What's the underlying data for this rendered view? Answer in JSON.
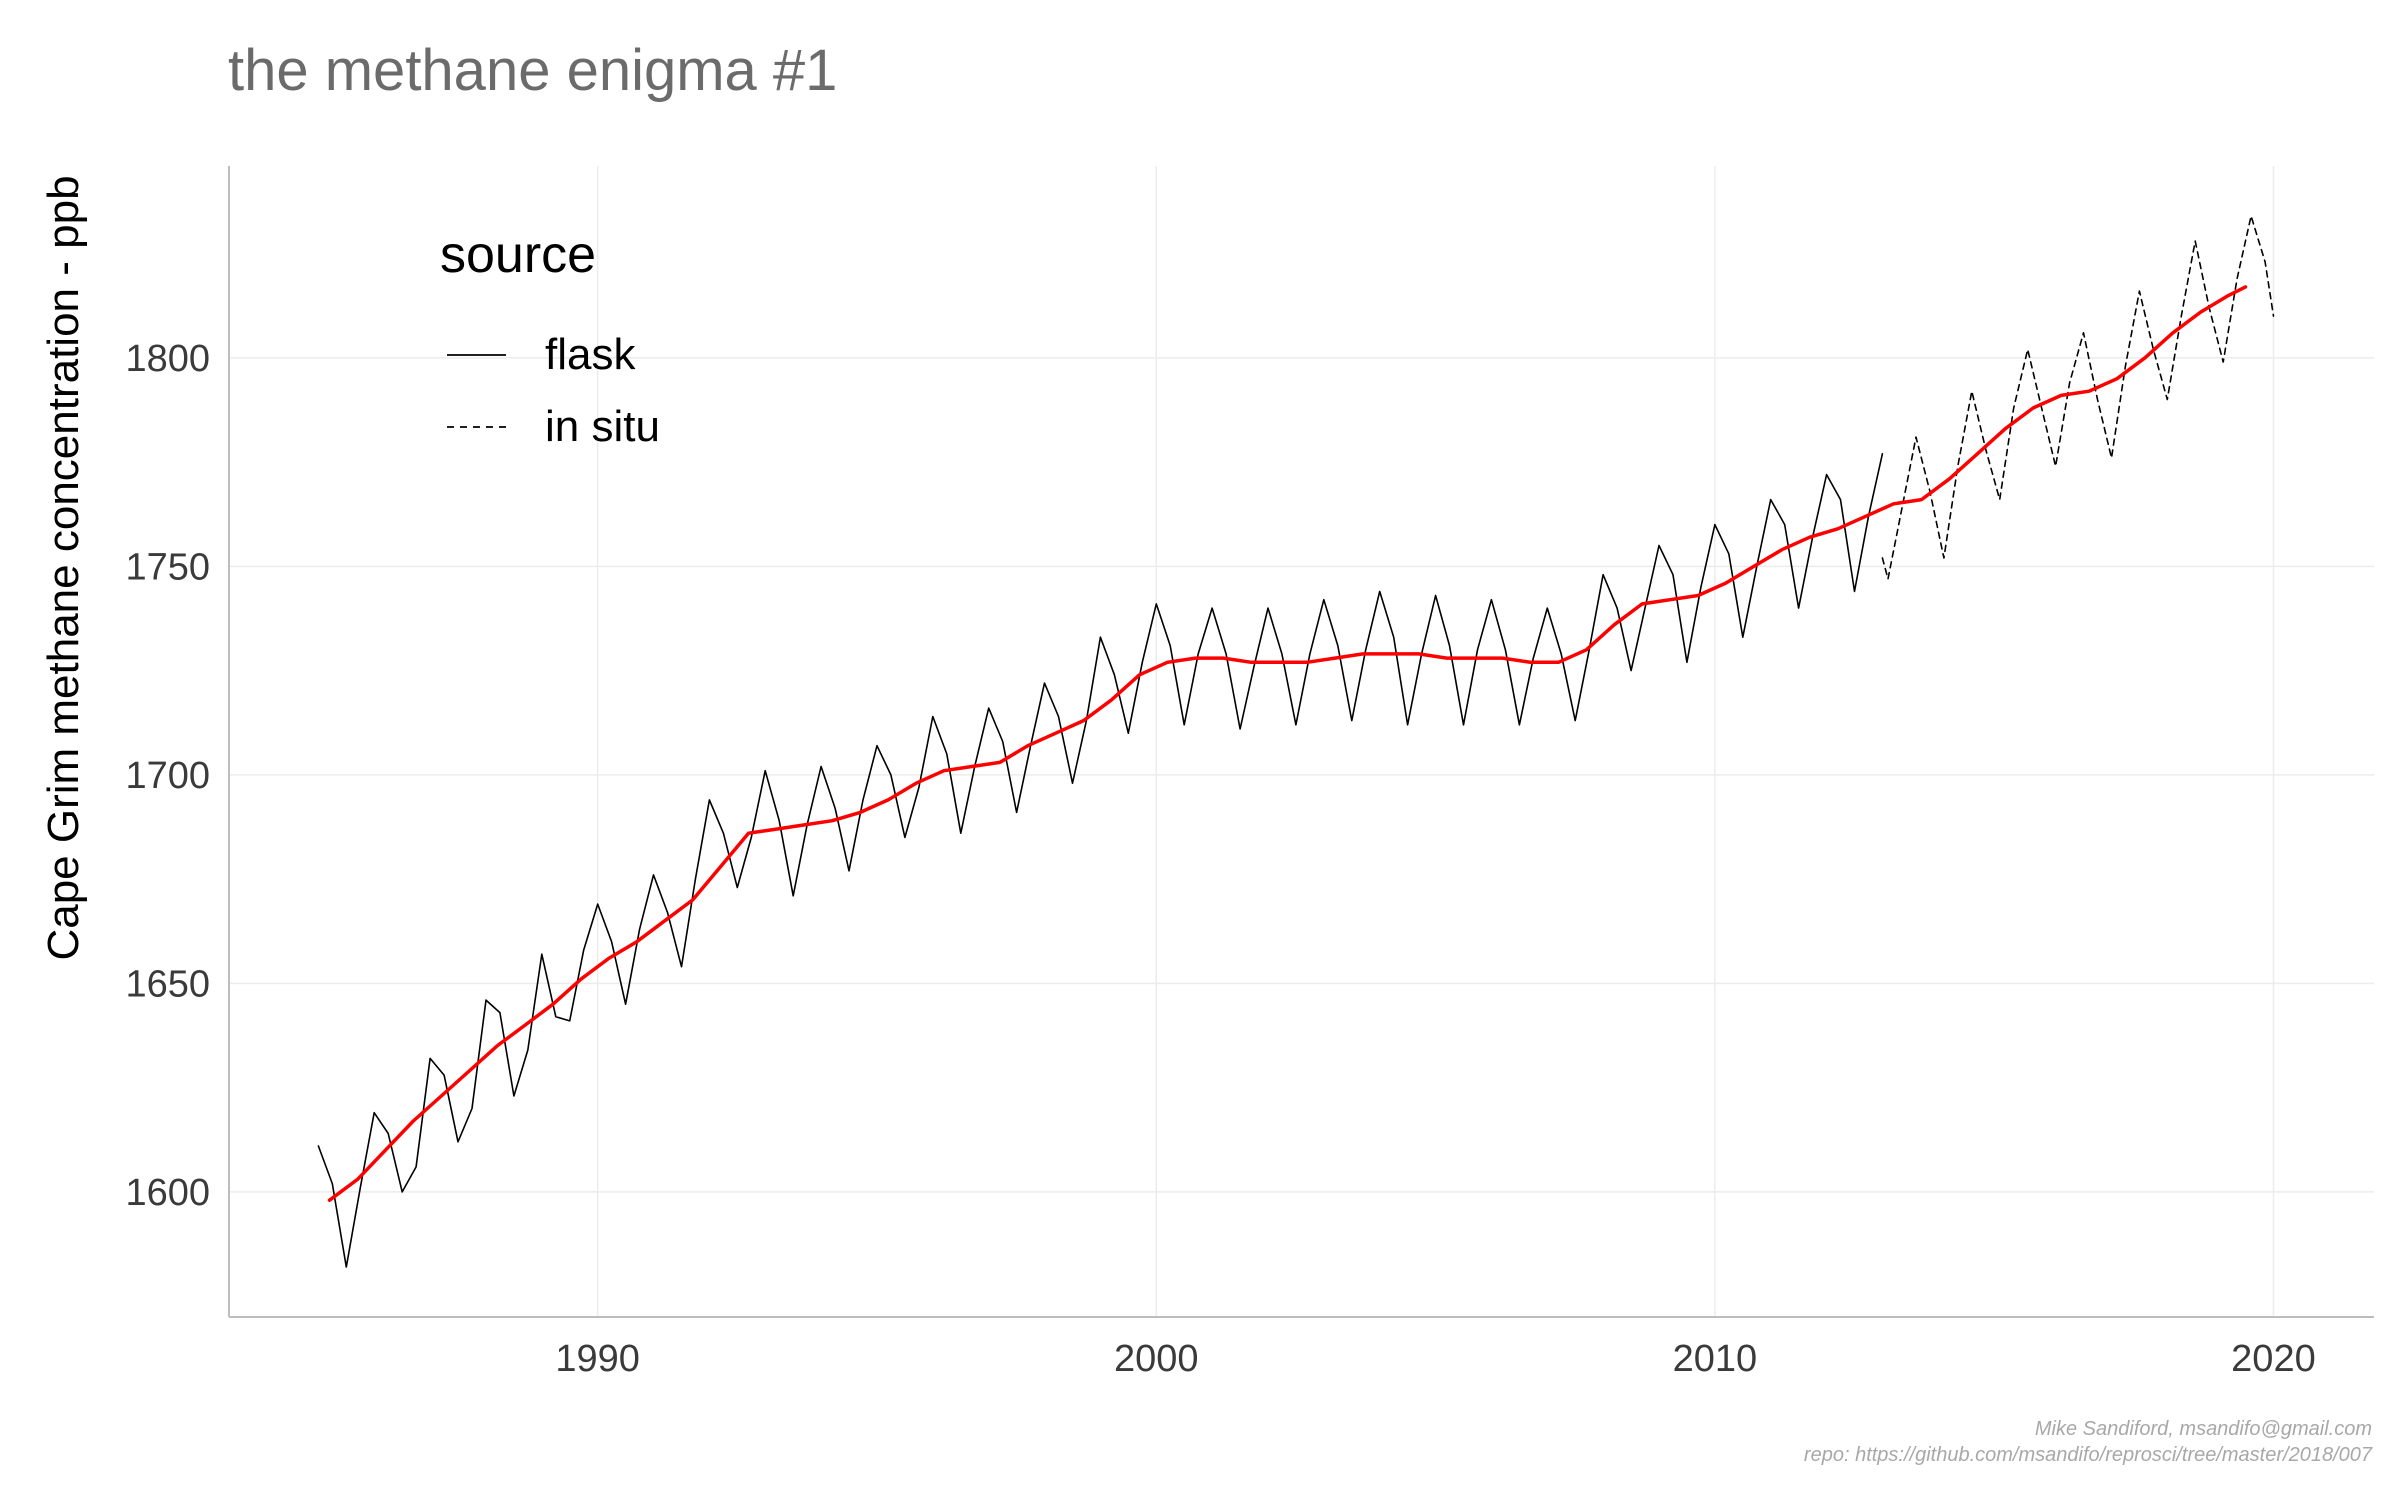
{
  "chart_data": {
    "type": "line",
    "title": "the methane enigma #1",
    "xlabel": "",
    "ylabel": "Cape Grim methane concentration - ppb",
    "xlim": [
      1983.4,
      2021.8
    ],
    "ylim": [
      1570,
      1846
    ],
    "x_ticks": [
      1990,
      2000,
      2010,
      2020
    ],
    "y_ticks": [
      1600,
      1650,
      1700,
      1750,
      1800
    ],
    "x_tick_labels": [
      "1990",
      "2000",
      "2010",
      "2020"
    ],
    "y_tick_labels": [
      "1600",
      "1650",
      "1700",
      "1750",
      "1800"
    ],
    "grid": true,
    "legend": {
      "title": "source",
      "position": "top-left",
      "entries": [
        {
          "label": "flask",
          "dash": "solid"
        },
        {
          "label": "in situ",
          "dash": "dashed"
        }
      ]
    },
    "series": [
      {
        "name": "flask",
        "color": "#000000",
        "style": "solid",
        "x": [
          1985.0,
          1985.25,
          1985.5,
          1985.75,
          1986.0,
          1986.25,
          1986.5,
          1986.75,
          1987.0,
          1987.25,
          1987.5,
          1987.75,
          1988.0,
          1988.25,
          1988.5,
          1988.75,
          1989.0,
          1989.25,
          1989.5,
          1989.75,
          1990.0,
          1990.25,
          1990.5,
          1990.75,
          1991.0,
          1991.25,
          1991.5,
          1991.75,
          1992.0,
          1992.25,
          1992.5,
          1992.75,
          1993.0,
          1993.25,
          1993.5,
          1993.75,
          1994.0,
          1994.25,
          1994.5,
          1994.75,
          1995.0,
          1995.25,
          1995.5,
          1995.75,
          1996.0,
          1996.25,
          1996.5,
          1996.75,
          1997.0,
          1997.25,
          1997.5,
          1997.75,
          1998.0,
          1998.25,
          1998.5,
          1998.75,
          1999.0,
          1999.25,
          1999.5,
          1999.75,
          2000.0,
          2000.25,
          2000.5,
          2000.75,
          2001.0,
          2001.25,
          2001.5,
          2001.75,
          2002.0,
          2002.25,
          2002.5,
          2002.75,
          2003.0,
          2003.25,
          2003.5,
          2003.75,
          2004.0,
          2004.25,
          2004.5,
          2004.75,
          2005.0,
          2005.25,
          2005.5,
          2005.75,
          2006.0,
          2006.25,
          2006.5,
          2006.75,
          2007.0,
          2007.25,
          2007.5,
          2007.75,
          2008.0,
          2008.25,
          2008.5,
          2008.75,
          2009.0,
          2009.25,
          2009.5,
          2009.75,
          2010.0,
          2010.25,
          2010.5,
          2010.75,
          2011.0,
          2011.25,
          2011.5,
          2011.75,
          2012.0,
          2012.25,
          2012.5,
          2012.75,
          2013.0
        ],
        "y": [
          1611,
          1602,
          1582,
          1601,
          1619,
          1614,
          1600,
          1606,
          1632,
          1628,
          1612,
          1620,
          1646,
          1643,
          1623,
          1634,
          1657,
          1642,
          1641,
          1658,
          1669,
          1660,
          1645,
          1663,
          1676,
          1667,
          1654,
          1675,
          1694,
          1686,
          1673,
          1685,
          1701,
          1689,
          1671,
          1688,
          1702,
          1692,
          1677,
          1694,
          1707,
          1700,
          1685,
          1697,
          1714,
          1705,
          1686,
          1702,
          1716,
          1708,
          1691,
          1707,
          1722,
          1714,
          1698,
          1713,
          1733,
          1724,
          1710,
          1727,
          1741,
          1731,
          1712,
          1729,
          1740,
          1729,
          1711,
          1726,
          1740,
          1729,
          1712,
          1729,
          1742,
          1731,
          1713,
          1730,
          1744,
          1733,
          1712,
          1729,
          1743,
          1731,
          1712,
          1730,
          1742,
          1730,
          1712,
          1728,
          1740,
          1729,
          1713,
          1730,
          1748,
          1740,
          1725,
          1740,
          1755,
          1748,
          1727,
          1745,
          1760,
          1753,
          1733,
          1750,
          1766,
          1760,
          1740,
          1757,
          1772,
          1766,
          1744,
          1762,
          1777
        ]
      },
      {
        "name": "in situ",
        "color": "#000000",
        "style": "dashed",
        "x": [
          2013.0,
          2013.1,
          2013.35,
          2013.6,
          2013.85,
          2014.1,
          2014.35,
          2014.6,
          2014.85,
          2015.1,
          2015.35,
          2015.6,
          2015.85,
          2016.1,
          2016.35,
          2016.6,
          2016.85,
          2017.1,
          2017.35,
          2017.6,
          2017.85,
          2018.1,
          2018.35,
          2018.6,
          2018.85,
          2019.1,
          2019.35,
          2019.6,
          2019.85,
          2020.0
        ],
        "y": [
          1752,
          1747,
          1764,
          1781,
          1768,
          1752,
          1774,
          1792,
          1778,
          1766,
          1788,
          1802,
          1788,
          1774,
          1794,
          1806,
          1790,
          1776,
          1798,
          1816,
          1802,
          1790,
          1810,
          1828,
          1812,
          1799,
          1819,
          1834,
          1823,
          1810
        ]
      },
      {
        "name": "",
        "color": "#ff0000",
        "style": "solid",
        "x": [
          1985.2,
          1985.7,
          1986.2,
          1986.7,
          1987.2,
          1987.7,
          1988.2,
          1988.7,
          1989.2,
          1989.7,
          1990.2,
          1990.7,
          1991.2,
          1991.7,
          1992.2,
          1992.7,
          1993.2,
          1993.7,
          1994.2,
          1994.7,
          1995.2,
          1995.7,
          1996.2,
          1996.7,
          1997.2,
          1997.7,
          1998.2,
          1998.7,
          1999.2,
          1999.7,
          2000.2,
          2000.7,
          2001.2,
          2001.7,
          2002.2,
          2002.7,
          2003.2,
          2003.7,
          2004.2,
          2004.7,
          2005.2,
          2005.7,
          2006.2,
          2006.7,
          2007.2,
          2007.7,
          2008.2,
          2008.7,
          2009.2,
          2009.7,
          2010.2,
          2010.7,
          2011.2,
          2011.7,
          2012.2,
          2012.7,
          2013.2,
          2013.7,
          2014.2,
          2014.7,
          2015.2,
          2015.7,
          2016.2,
          2016.7,
          2017.2,
          2017.7,
          2018.2,
          2018.7,
          2019.2,
          2019.5
        ],
        "y": [
          1598,
          1603,
          1610,
          1617,
          1623,
          1629,
          1635,
          1640,
          1645,
          1651,
          1656,
          1660,
          1665,
          1670,
          1678,
          1686,
          1687,
          1688,
          1689,
          1691,
          1694,
          1698,
          1701,
          1702,
          1703,
          1707,
          1710,
          1713,
          1718,
          1724,
          1727,
          1728,
          1728,
          1727,
          1727,
          1727,
          1728,
          1729,
          1729,
          1729,
          1728,
          1728,
          1728,
          1727,
          1727,
          1730,
          1736,
          1741,
          1742,
          1743,
          1746,
          1750,
          1754,
          1757,
          1759,
          1762,
          1765,
          1766,
          1771,
          1777,
          1783,
          1788,
          1791,
          1792,
          1795,
          1800,
          1806,
          1811,
          1815,
          1817
        ]
      }
    ]
  },
  "caption": {
    "line1": "Mike Sandiford, msandifo@gmail.com",
    "line2": "repo: https://github.com/msandifo/reprosci/tree/master/2018/007"
  }
}
